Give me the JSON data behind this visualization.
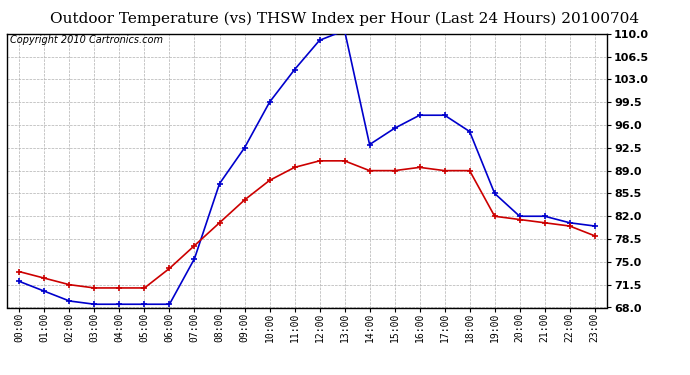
{
  "title": "Outdoor Temperature (vs) THSW Index per Hour (Last 24 Hours) 20100704",
  "copyright": "Copyright 2010 Cartronics.com",
  "hours": [
    "00:00",
    "01:00",
    "02:00",
    "03:00",
    "04:00",
    "05:00",
    "06:00",
    "07:00",
    "08:00",
    "09:00",
    "10:00",
    "11:00",
    "12:00",
    "13:00",
    "14:00",
    "15:00",
    "16:00",
    "17:00",
    "18:00",
    "19:00",
    "20:00",
    "21:00",
    "22:00",
    "23:00"
  ],
  "temp": [
    73.5,
    72.5,
    71.5,
    71.0,
    71.0,
    71.0,
    74.0,
    77.5,
    81.0,
    84.5,
    87.5,
    89.5,
    90.5,
    90.5,
    89.0,
    89.0,
    89.5,
    89.0,
    89.0,
    82.0,
    81.5,
    81.0,
    80.5,
    79.0
  ],
  "thsw": [
    72.0,
    70.5,
    69.0,
    68.5,
    68.5,
    68.5,
    68.5,
    75.5,
    87.0,
    92.5,
    99.5,
    104.5,
    109.0,
    110.5,
    93.0,
    95.5,
    97.5,
    97.5,
    95.0,
    85.5,
    82.0,
    82.0,
    81.0,
    80.5
  ],
  "ylim": [
    68.0,
    110.0
  ],
  "yticks": [
    68.0,
    71.5,
    75.0,
    78.5,
    82.0,
    85.5,
    89.0,
    92.5,
    96.0,
    99.5,
    103.0,
    106.5,
    110.0
  ],
  "temp_color": "#cc0000",
  "thsw_color": "#0000cc",
  "background_color": "#ffffff",
  "grid_color": "#b0b0b0",
  "title_fontsize": 11,
  "copyright_fontsize": 7
}
